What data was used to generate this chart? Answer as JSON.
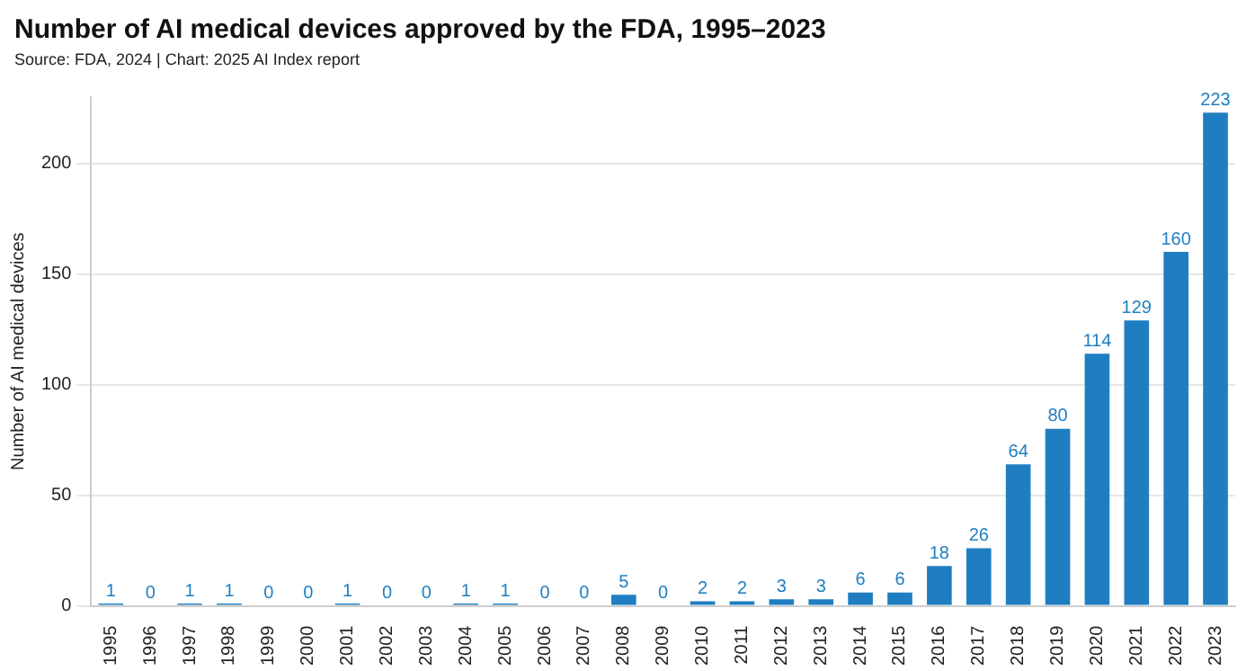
{
  "chart_data": {
    "type": "bar",
    "title": "Number of AI medical devices approved by the FDA, 1995–2023",
    "subtitle": "Source: FDA, 2024 | Chart: 2025 AI Index report",
    "ylabel": "Number of AI medical devices",
    "categories": [
      "1995",
      "1996",
      "1997",
      "1998",
      "1999",
      "2000",
      "2001",
      "2002",
      "2003",
      "2004",
      "2005",
      "2006",
      "2007",
      "2008",
      "2009",
      "2010",
      "2011",
      "2012",
      "2013",
      "2014",
      "2015",
      "2016",
      "2017",
      "2018",
      "2019",
      "2020",
      "2021",
      "2022",
      "2023"
    ],
    "values": [
      1,
      0,
      1,
      1,
      0,
      0,
      1,
      0,
      0,
      1,
      1,
      0,
      0,
      5,
      0,
      2,
      2,
      3,
      3,
      6,
      6,
      18,
      26,
      64,
      80,
      114,
      129,
      160,
      223
    ],
    "color": "#1f7ec2",
    "ylim": [
      0,
      230
    ],
    "yticks": [
      0,
      50,
      100,
      150,
      200
    ],
    "grid": "y",
    "data_labels": true
  }
}
